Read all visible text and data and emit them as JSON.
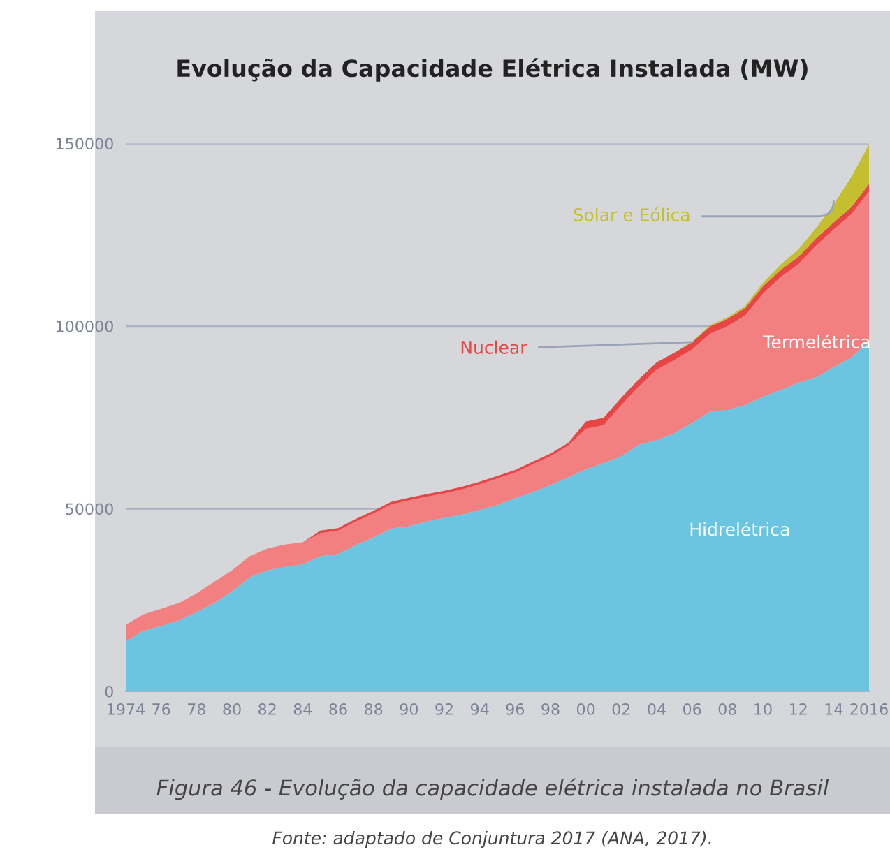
{
  "chart_data": {
    "type": "area",
    "stacked": true,
    "title": "Evolução da Capacidade Elétrica Instalada (MW)",
    "x": [
      1974,
      1975,
      1976,
      1977,
      1978,
      1979,
      1980,
      1981,
      1982,
      1983,
      1984,
      1985,
      1986,
      1987,
      1988,
      1989,
      1990,
      1991,
      1992,
      1993,
      1994,
      1995,
      1996,
      1997,
      1998,
      1999,
      2000,
      2001,
      2002,
      2003,
      2004,
      2005,
      2006,
      2007,
      2008,
      2009,
      2010,
      2011,
      2012,
      2013,
      2014,
      2015,
      2016
    ],
    "series": [
      {
        "name": "Hidrelétrica",
        "color": "#6cc5e0",
        "values": [
          13700,
          16600,
          17900,
          19400,
          21700,
          24200,
          27400,
          31200,
          33100,
          34100,
          34800,
          37000,
          37600,
          40100,
          42100,
          44600,
          45200,
          46500,
          47500,
          48400,
          49700,
          51000,
          52900,
          54600,
          56500,
          58600,
          60800,
          62500,
          64400,
          67600,
          68800,
          70700,
          73500,
          76500,
          77100,
          78400,
          80700,
          82500,
          84500,
          86000,
          88800,
          91400,
          96000
        ]
      },
      {
        "name": "Termelétrica",
        "color": "#f28080",
        "values": [
          4500,
          4500,
          4700,
          4800,
          5100,
          5800,
          5700,
          5800,
          6000,
          6100,
          6000,
          6300,
          6400,
          6400,
          6600,
          6600,
          7100,
          6800,
          6700,
          6900,
          7000,
          7300,
          7000,
          7600,
          7900,
          8700,
          11100,
          10400,
          14000,
          15900,
          19300,
          20000,
          20100,
          21400,
          22900,
          24500,
          28200,
          30900,
          32400,
          36000,
          37600,
          39200,
          40900
        ]
      },
      {
        "name": "Nuclear",
        "color": "#e84545",
        "values": [
          0,
          0,
          0,
          0,
          0,
          0,
          0,
          0,
          0,
          0,
          0,
          700,
          700,
          700,
          700,
          700,
          700,
          700,
          700,
          700,
          700,
          700,
          700,
          700,
          700,
          700,
          2000,
          2000,
          2000,
          2000,
          2000,
          2000,
          2000,
          2000,
          2000,
          2000,
          2000,
          2000,
          2000,
          2000,
          2000,
          2000,
          2000
        ]
      },
      {
        "name": "Solar e Eólica",
        "color": "#c3bf2e",
        "values": [
          0,
          0,
          0,
          0,
          0,
          0,
          0,
          0,
          0,
          0,
          0,
          0,
          0,
          0,
          0,
          0,
          0,
          0,
          0,
          0,
          0,
          0,
          0,
          0,
          0,
          0,
          0,
          0,
          0,
          0,
          0,
          0,
          200,
          300,
          400,
          600,
          900,
          1400,
          2000,
          2800,
          4900,
          8200,
          10800
        ]
      }
    ],
    "xlim": [
      1974,
      2016
    ],
    "xticks": [
      1974,
      {
        "value": 1976,
        "label": "76"
      },
      {
        "value": 1978,
        "label": "78"
      },
      {
        "value": 1980,
        "label": "80"
      },
      {
        "value": 1982,
        "label": "82"
      },
      {
        "value": 1984,
        "label": "84"
      },
      {
        "value": 1986,
        "label": "86"
      },
      {
        "value": 1988,
        "label": "88"
      },
      {
        "value": 1990,
        "label": "90"
      },
      {
        "value": 1992,
        "label": "92"
      },
      {
        "value": 1994,
        "label": "94"
      },
      {
        "value": 1996,
        "label": "96"
      },
      {
        "value": 1998,
        "label": "98"
      },
      {
        "value": 2000,
        "label": "00"
      },
      {
        "value": 2002,
        "label": "02"
      },
      {
        "value": 2004,
        "label": "04"
      },
      {
        "value": 2006,
        "label": "06"
      },
      {
        "value": 2008,
        "label": "08"
      },
      {
        "value": 2010,
        "label": "10"
      },
      {
        "value": 2012,
        "label": "12"
      },
      {
        "value": 2014,
        "label": "14"
      },
      2016
    ],
    "ylim": [
      0,
      150000
    ],
    "yticks": [
      0,
      50000,
      100000,
      150000
    ],
    "grid": "y",
    "legend": false,
    "annotations": [
      "Figura 46 - Evolução da capacidade elétrica instalada no Brasil",
      "Fonte: adaptado de Conjuntura 2017 (ANA, 2017)."
    ]
  }
}
